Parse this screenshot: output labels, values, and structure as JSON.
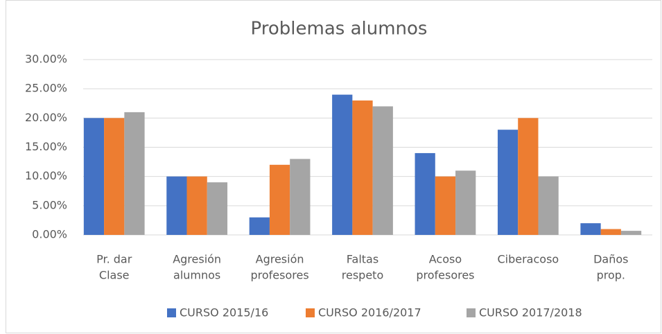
{
  "chart_data": {
    "type": "bar",
    "title": "Problemas alumnos",
    "categories": [
      [
        "Pr. dar",
        "Clase"
      ],
      [
        "Agresión",
        "alumnos"
      ],
      [
        "Agresión",
        "profesores"
      ],
      [
        "Faltas",
        "respeto"
      ],
      [
        "Acoso",
        "profesores"
      ],
      [
        "Ciberacoso"
      ],
      [
        "Daños",
        "prop."
      ]
    ],
    "series": [
      {
        "name": "CURSO 2015/16",
        "color": "#4472c4",
        "values": [
          20,
          10,
          3,
          24,
          14,
          18,
          2
        ]
      },
      {
        "name": "CURSO 2016/2017",
        "color": "#ed7d31",
        "values": [
          20,
          10,
          12,
          23,
          10,
          20,
          1
        ]
      },
      {
        "name": "CURSO 2017/2018",
        "color": "#a5a5a5",
        "values": [
          21,
          9,
          13,
          22,
          11,
          10,
          0.7
        ]
      }
    ],
    "ylim": [
      0,
      30
    ],
    "yticks": [
      {
        "value": 0,
        "label": "0.00%"
      },
      {
        "value": 5,
        "label": "5.00%"
      },
      {
        "value": 10,
        "label": "10.00%"
      },
      {
        "value": 15,
        "label": "15.00%"
      },
      {
        "value": 20,
        "label": "20.00%"
      },
      {
        "value": 25,
        "label": "25.00%"
      },
      {
        "value": 30,
        "label": "30.00%"
      }
    ],
    "grid": true,
    "legend": "bottom"
  }
}
